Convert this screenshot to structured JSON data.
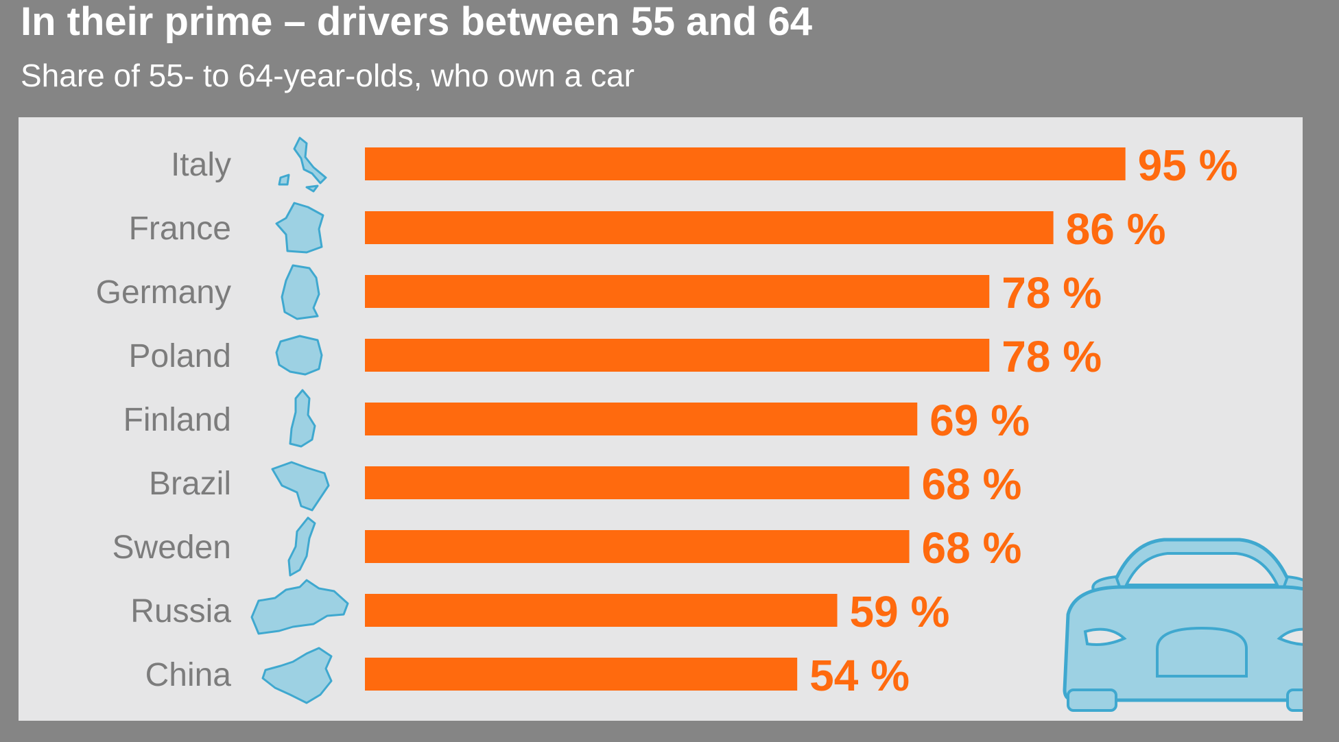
{
  "title": "In their prime – drivers between 55 and 64",
  "subtitle": "Share of 55- to 64-year-olds, who own a car",
  "colors": {
    "background": "#858585",
    "panel": "#e6e6e7",
    "bar": "#ff6a0e",
    "value_text": "#ff6a0e",
    "label_text": "#7c7c7c",
    "icon_fill": "#9dd1e3",
    "icon_stroke": "#3fa8cf"
  },
  "chart_data": {
    "type": "bar",
    "orientation": "horizontal",
    "categories": [
      "Italy",
      "France",
      "Germany",
      "Poland",
      "Finland",
      "Brazil",
      "Sweden",
      "Russia",
      "China"
    ],
    "values": [
      95,
      86,
      78,
      78,
      69,
      68,
      68,
      59,
      54
    ],
    "value_labels": [
      "95 %",
      "86 %",
      "78 %",
      "78 %",
      "69 %",
      "68 %",
      "68 %",
      "59 %",
      "54 %"
    ],
    "icons": [
      "italy-map-icon",
      "france-map-icon",
      "germany-map-icon",
      "poland-map-icon",
      "finland-map-icon",
      "brazil-map-icon",
      "sweden-map-icon",
      "russia-map-icon",
      "china-map-icon"
    ],
    "unit": "%",
    "xlim": [
      0,
      100
    ],
    "grid": false,
    "legend": "none"
  },
  "decoration": {
    "car_icon": "car-icon"
  }
}
